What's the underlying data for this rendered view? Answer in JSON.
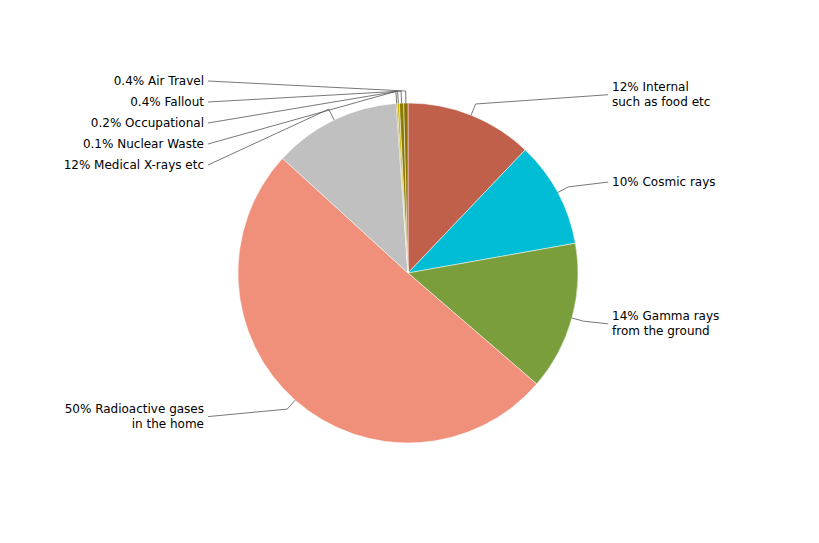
{
  "chart_data": {
    "type": "pie",
    "categories": [
      "12% Internal\nsuch as food etc",
      "10% Cosmic rays",
      "14% Gamma rays\nfrom the ground",
      "50% Radioactive gases\nin the home",
      "12% Medical X-rays etc",
      "0.1% Nuclear Waste",
      "0.2% Occupational",
      "0.4% Fallout",
      "0.4% Air Travel"
    ],
    "values": [
      12,
      10,
      14,
      50,
      12,
      0.1,
      0.2,
      0.4,
      0.4
    ],
    "colors": [
      "#C1604A",
      "#00BCD4",
      "#7A9E3B",
      "#F0907A",
      "#C0C0C0",
      "#8B6B14",
      "#C8B400",
      "#8B7B00",
      "#8B7000"
    ]
  }
}
